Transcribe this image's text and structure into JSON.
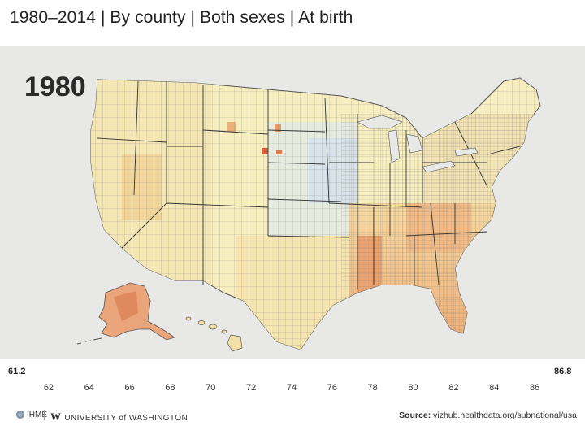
{
  "title": "1980–2014 | By county | Both sexes | At birth",
  "year": "1980",
  "legend": {
    "min_label": "61.2",
    "max_label": "86.8",
    "min_value": 61.2,
    "max_value": 86.8,
    "ticks": [
      "62",
      "64",
      "66",
      "68",
      "70",
      "72",
      "74",
      "76",
      "78",
      "80",
      "82",
      "84",
      "86"
    ],
    "colors": [
      "#d7301f",
      "#e8742d",
      "#f3b86a",
      "#f7e6a8",
      "#eef2d8",
      "#c6dbef",
      "#6a8fc6",
      "#2b3a99",
      "#1c1f7a"
    ]
  },
  "footer": {
    "ihme": "IHME",
    "uw": "UNIVERSITY of WASHINGTON",
    "source_label": "Source:",
    "source_url": "vizhub.healthdata.org/subnational/usa"
  }
}
